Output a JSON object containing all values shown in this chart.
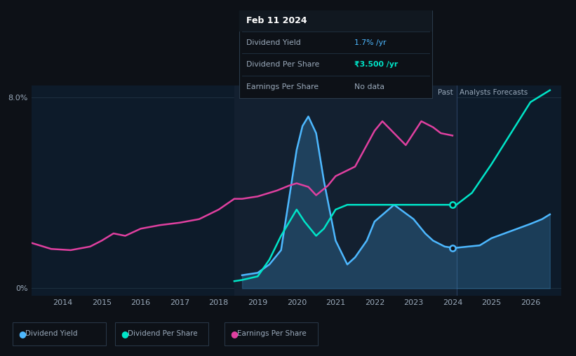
{
  "bg_color": "#0d1117",
  "plot_bg_color": "#0d1b2a",
  "highlight_bg": "#132030",
  "grid_color": "#1e3040",
  "text_color": "#9aaabb",
  "div_yield_color": "#4db8ff",
  "div_per_share_color": "#00e5c8",
  "eps_color": "#e040a0",
  "past_label": "Past",
  "forecast_label": "Analysts Forecasts",
  "x_ticks": [
    "2014",
    "2015",
    "2016",
    "2017",
    "2018",
    "2019",
    "2020",
    "2021",
    "2022",
    "2023",
    "2024",
    "2025",
    "2026"
  ],
  "xlim": [
    2013.2,
    2026.8
  ],
  "ylim": [
    -0.3,
    8.5
  ],
  "y_label_0": "0%",
  "y_label_8": "8.0%",
  "y_val_0": 0.0,
  "y_val_8": 8.0,
  "past_end": 2024.1,
  "highlight_start": 2018.4,
  "tooltip": {
    "date": "Feb 11 2024",
    "row1_label": "Dividend Yield",
    "row1_val": "1.7%",
    "row1_unit": " /yr",
    "row2_label": "Dividend Per Share",
    "row2_val": "₹3.500",
    "row2_unit": " /yr",
    "row3_label": "Earnings Per Share",
    "row3_val": "No data"
  },
  "legend_items": [
    {
      "color": "#4db8ff",
      "label": "Dividend Yield"
    },
    {
      "color": "#00e5c8",
      "label": "Dividend Per Share"
    },
    {
      "color": "#e040a0",
      "label": "Earnings Per Share"
    }
  ],
  "div_yield": {
    "x": [
      2013.2,
      2013.7,
      2014.0,
      2014.5,
      2015.0,
      2015.3,
      2015.8,
      2016.2,
      2016.8,
      2017.2,
      2017.8,
      2018.2,
      2018.4,
      2018.6,
      2019.0,
      2019.3,
      2019.6,
      2020.0,
      2020.15,
      2020.3,
      2020.5,
      2020.7,
      2021.0,
      2021.3,
      2021.5,
      2021.8,
      2022.0,
      2022.5,
      2023.0,
      2023.3,
      2023.5,
      2023.8,
      2024.0,
      2024.1,
      2024.4,
      2024.7,
      2025.0,
      2025.5,
      2026.0,
      2026.3,
      2026.5
    ],
    "y": [
      null,
      null,
      null,
      null,
      null,
      null,
      null,
      null,
      null,
      null,
      null,
      null,
      null,
      0.55,
      0.65,
      1.0,
      1.6,
      5.8,
      6.8,
      7.2,
      6.5,
      4.5,
      2.0,
      1.0,
      1.3,
      2.0,
      2.8,
      3.5,
      2.9,
      2.3,
      2.0,
      1.75,
      1.7,
      1.7,
      1.75,
      1.8,
      2.1,
      2.4,
      2.7,
      2.9,
      3.1
    ]
  },
  "div_per_share": {
    "x": [
      2018.4,
      2018.6,
      2019.0,
      2019.3,
      2019.6,
      2020.0,
      2020.2,
      2020.5,
      2020.7,
      2021.0,
      2021.3,
      2021.6,
      2022.0,
      2022.5,
      2023.0,
      2023.5,
      2024.0,
      2024.1,
      2024.5,
      2025.0,
      2025.5,
      2026.0,
      2026.5
    ],
    "y": [
      0.3,
      0.35,
      0.5,
      1.2,
      2.2,
      3.3,
      2.8,
      2.2,
      2.5,
      3.3,
      3.5,
      3.5,
      3.5,
      3.5,
      3.5,
      3.5,
      3.5,
      3.5,
      4.0,
      5.2,
      6.5,
      7.8,
      8.3
    ]
  },
  "eps": {
    "x": [
      2013.2,
      2013.7,
      2014.2,
      2014.7,
      2015.0,
      2015.3,
      2015.6,
      2016.0,
      2016.5,
      2017.0,
      2017.5,
      2018.0,
      2018.4,
      2018.6,
      2019.0,
      2019.5,
      2019.8,
      2020.0,
      2020.3,
      2020.5,
      2020.8,
      2021.0,
      2021.5,
      2022.0,
      2022.2,
      2022.5,
      2022.8,
      2023.0,
      2023.2,
      2023.5,
      2023.7,
      2024.0
    ],
    "y": [
      1.9,
      1.65,
      1.6,
      1.75,
      2.0,
      2.3,
      2.2,
      2.5,
      2.65,
      2.75,
      2.9,
      3.3,
      3.75,
      3.75,
      3.85,
      4.1,
      4.3,
      4.4,
      4.25,
      3.9,
      4.3,
      4.7,
      5.1,
      6.6,
      7.0,
      6.5,
      6.0,
      6.5,
      7.0,
      6.75,
      6.5,
      6.4
    ]
  }
}
